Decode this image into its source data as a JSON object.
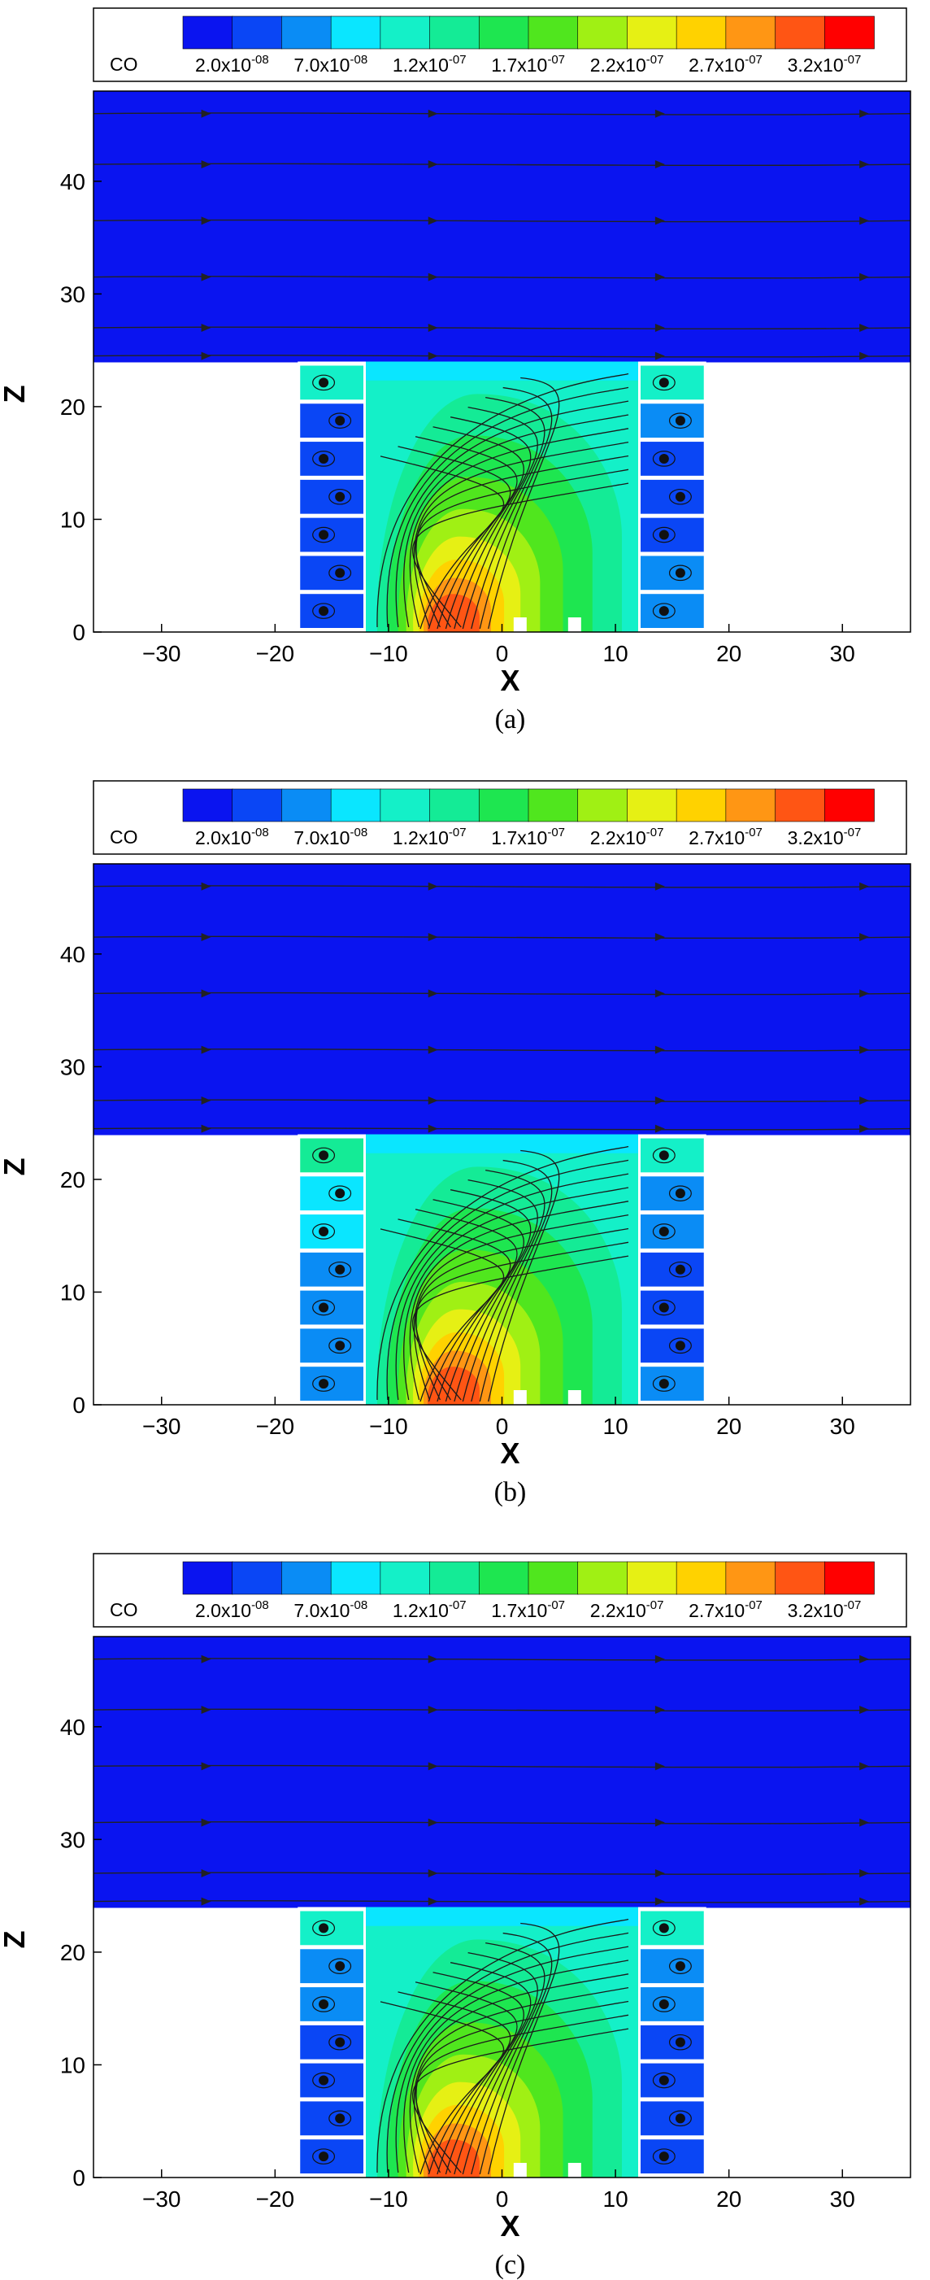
{
  "chart_data": [
    {
      "type": "heatmap",
      "panel_label": "(a)",
      "variable": "CO",
      "xlabel": "X",
      "ylabel": "Z",
      "xlim": [
        -36,
        36
      ],
      "ylim": [
        0,
        48
      ],
      "xticks": [
        -30,
        -20,
        -10,
        0,
        10,
        20,
        30
      ],
      "yticks": [
        0,
        10,
        20,
        30,
        40
      ],
      "colorbar": {
        "levels": [
          2e-08,
          4.5e-08,
          7e-08,
          9.5e-08,
          1.2e-07,
          1.45e-07,
          1.7e-07,
          1.95e-07,
          2.2e-07,
          2.45e-07,
          2.7e-07,
          2.95e-07,
          3.2e-07
        ],
        "labels": [
          {
            "mantissa": "2.0x10",
            "exponent": "-08"
          },
          {
            "mantissa": "7.0x10",
            "exponent": "-08"
          },
          {
            "mantissa": "1.2x10",
            "exponent": "-07"
          },
          {
            "mantissa": "1.7x10",
            "exponent": "-07"
          },
          {
            "mantissa": "2.2x10",
            "exponent": "-07"
          },
          {
            "mantissa": "2.7x10",
            "exponent": "-07"
          },
          {
            "mantissa": "3.2x10",
            "exponent": "-07"
          }
        ],
        "colors": [
          "#0a14f0",
          "#0a46f5",
          "#0a8cf5",
          "#0ae6ff",
          "#14f0c8",
          "#14eb96",
          "#1ee650",
          "#50e61e",
          "#a0f014",
          "#e6f014",
          "#ffd200",
          "#ff9614",
          "#ff5514",
          "#ff0000"
        ]
      },
      "regions": {
        "domain_top_z": 48,
        "above_roof_co": 2e-08,
        "canyon_x": [
          -12,
          12
        ],
        "building_x": [
          [
            -18,
            -12
          ],
          [
            12,
            18
          ]
        ],
        "building_top_z": 24,
        "hotspot_x": -5,
        "hotspot_peak_co": 3.2e-07,
        "left_building_cells_co": [
          1.2e-07,
          4.5e-08,
          4.5e-08,
          4.5e-08,
          4.5e-08,
          4.5e-08,
          4.5e-08
        ],
        "right_building_cells_co": [
          1.2e-07,
          7e-08,
          4.5e-08,
          4.5e-08,
          4.5e-08,
          7e-08,
          7e-08
        ]
      }
    },
    {
      "type": "heatmap",
      "panel_label": "(b)",
      "variable": "CO",
      "xlabel": "X",
      "ylabel": "Z",
      "xlim": [
        -36,
        36
      ],
      "ylim": [
        0,
        48
      ],
      "xticks": [
        -30,
        -20,
        -10,
        0,
        10,
        20,
        30
      ],
      "yticks": [
        0,
        10,
        20,
        30,
        40
      ],
      "colorbar": {
        "levels": [
          2e-08,
          4.5e-08,
          7e-08,
          9.5e-08,
          1.2e-07,
          1.45e-07,
          1.7e-07,
          1.95e-07,
          2.2e-07,
          2.45e-07,
          2.7e-07,
          2.95e-07,
          3.2e-07
        ],
        "labels": [
          {
            "mantissa": "2.0x10",
            "exponent": "-08"
          },
          {
            "mantissa": "7.0x10",
            "exponent": "-08"
          },
          {
            "mantissa": "1.2x10",
            "exponent": "-07"
          },
          {
            "mantissa": "1.7x10",
            "exponent": "-07"
          },
          {
            "mantissa": "2.2x10",
            "exponent": "-07"
          },
          {
            "mantissa": "2.7x10",
            "exponent": "-07"
          },
          {
            "mantissa": "3.2x10",
            "exponent": "-07"
          }
        ],
        "colors": [
          "#0a14f0",
          "#0a46f5",
          "#0a8cf5",
          "#0ae6ff",
          "#14f0c8",
          "#14eb96",
          "#1ee650",
          "#50e61e",
          "#a0f014",
          "#e6f014",
          "#ffd200",
          "#ff9614",
          "#ff5514",
          "#ff0000"
        ]
      },
      "regions": {
        "domain_top_z": 48,
        "above_roof_co": 2e-08,
        "canyon_x": [
          -12,
          12
        ],
        "building_x": [
          [
            -18,
            -12
          ],
          [
            12,
            18
          ]
        ],
        "building_top_z": 24,
        "hotspot_x": -5,
        "hotspot_peak_co": 3.2e-07,
        "left_building_cells_co": [
          1.45e-07,
          9.5e-08,
          9.5e-08,
          7e-08,
          7e-08,
          7e-08,
          7e-08
        ],
        "right_building_cells_co": [
          1.2e-07,
          7e-08,
          7e-08,
          4.5e-08,
          4.5e-08,
          4.5e-08,
          7e-08
        ]
      }
    },
    {
      "type": "heatmap",
      "panel_label": "(c)",
      "variable": "CO",
      "xlabel": "X",
      "ylabel": "Z",
      "xlim": [
        -36,
        36
      ],
      "ylim": [
        0,
        48
      ],
      "xticks": [
        -30,
        -20,
        -10,
        0,
        10,
        20,
        30
      ],
      "yticks": [
        0,
        10,
        20,
        30,
        40
      ],
      "colorbar": {
        "levels": [
          2e-08,
          4.5e-08,
          7e-08,
          9.5e-08,
          1.2e-07,
          1.45e-07,
          1.7e-07,
          1.95e-07,
          2.2e-07,
          2.45e-07,
          2.7e-07,
          2.95e-07,
          3.2e-07
        ],
        "labels": [
          {
            "mantissa": "2.0x10",
            "exponent": "-08"
          },
          {
            "mantissa": "7.0x10",
            "exponent": "-08"
          },
          {
            "mantissa": "1.2x10",
            "exponent": "-07"
          },
          {
            "mantissa": "1.7x10",
            "exponent": "-07"
          },
          {
            "mantissa": "2.2x10",
            "exponent": "-07"
          },
          {
            "mantissa": "2.7x10",
            "exponent": "-07"
          },
          {
            "mantissa": "3.2x10",
            "exponent": "-07"
          }
        ],
        "colors": [
          "#0a14f0",
          "#0a46f5",
          "#0a8cf5",
          "#0ae6ff",
          "#14f0c8",
          "#14eb96",
          "#1ee650",
          "#50e61e",
          "#a0f014",
          "#e6f014",
          "#ffd200",
          "#ff9614",
          "#ff5514",
          "#ff0000"
        ]
      },
      "regions": {
        "domain_top_z": 48,
        "above_roof_co": 2e-08,
        "canyon_x": [
          -12,
          12
        ],
        "building_x": [
          [
            -18,
            -12
          ],
          [
            12,
            18
          ]
        ],
        "building_top_z": 24,
        "hotspot_x": -5,
        "hotspot_peak_co": 3.2e-07,
        "left_building_cells_co": [
          1.2e-07,
          7e-08,
          7e-08,
          4.5e-08,
          4.5e-08,
          4.5e-08,
          4.5e-08
        ],
        "right_building_cells_co": [
          1.2e-07,
          7e-08,
          7e-08,
          4.5e-08,
          4.5e-08,
          4.5e-08,
          4.5e-08
        ]
      }
    }
  ]
}
